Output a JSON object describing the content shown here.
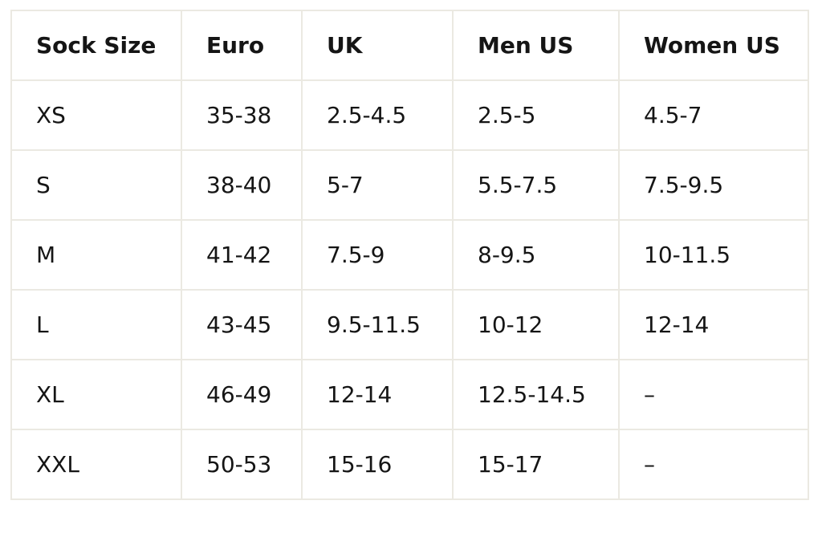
{
  "table": {
    "header": [
      "Sock Size",
      "Euro",
      "UK",
      "Men US",
      "Women US"
    ],
    "rows": [
      [
        "XS",
        "35-38",
        "2.5-4.5",
        "2.5-5",
        "4.5-7"
      ],
      [
        "S",
        "38-40",
        "5-7",
        "5.5-7.5",
        "7.5-9.5"
      ],
      [
        "M",
        "41-42",
        "7.5-9",
        "8-9.5",
        "10-11.5"
      ],
      [
        "L",
        "43-45",
        "9.5-11.5",
        "10-12",
        "12-14"
      ],
      [
        "XL",
        "46-49",
        "12-14",
        "12.5-14.5",
        "–"
      ],
      [
        "XXL",
        "50-53",
        "15-16",
        "15-17",
        "–"
      ]
    ]
  }
}
